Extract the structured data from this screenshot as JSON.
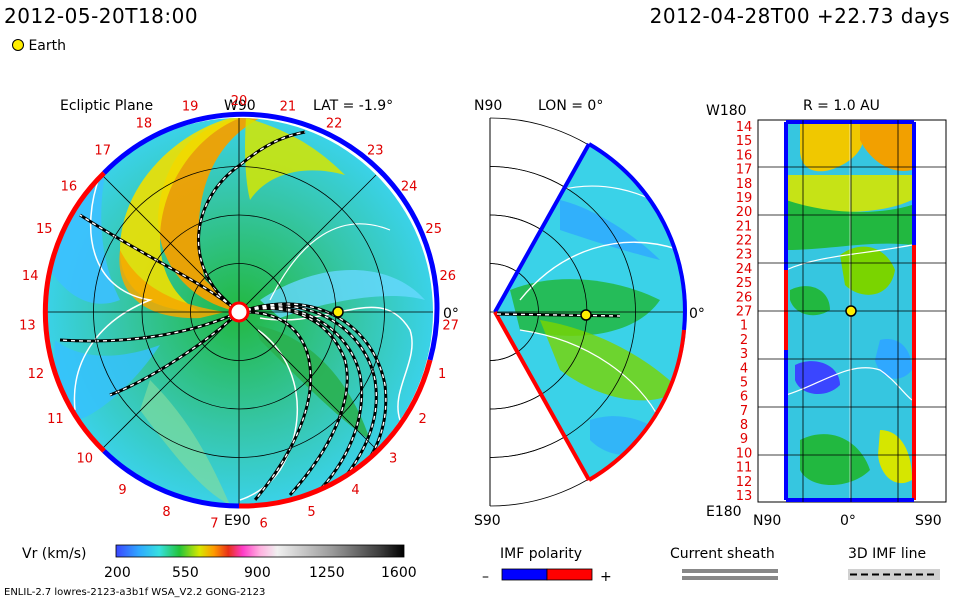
{
  "header": {
    "timestamp": "2012-05-20T18:00",
    "reference": "2012-04-28T00 +22.73 days",
    "legend_earth": "Earth"
  },
  "colors": {
    "earth": "#ffee00",
    "polarity_negative": "#0000ff",
    "polarity_positive": "#ff0000",
    "sheath": "#888888"
  },
  "chart_data": [
    {
      "type": "heatmap",
      "panel": "ecliptic",
      "title": "Ecliptic Plane",
      "subtitle": "LAT = -1.9°",
      "top_label": "W90",
      "bottom_label": "E90",
      "right_label": "0°",
      "carrington_ticks": [
        "20",
        "21",
        "22",
        "23",
        "24",
        "25",
        "26",
        "27",
        "1",
        "2",
        "3",
        "4",
        "5",
        "6",
        "7",
        "8",
        "9",
        "10",
        "11",
        "12",
        "13",
        "14",
        "15",
        "16",
        "17",
        "18",
        "19"
      ],
      "earth_position": {
        "r_au": 1.0,
        "angle_deg": 0
      }
    },
    {
      "type": "heatmap",
      "panel": "meridional",
      "title": "LON = 0°",
      "top_label": "N90",
      "bottom_label": "S90",
      "right_label": "0°"
    },
    {
      "type": "heatmap",
      "panel": "r_1au",
      "title": "R = 1.0 AU",
      "y_top_label": "W180",
      "y_bottom_label": "E180",
      "x_labels": [
        "N90",
        "0°",
        "S90"
      ],
      "y_ticks": [
        "14",
        "15",
        "16",
        "17",
        "18",
        "19",
        "20",
        "21",
        "22",
        "23",
        "24",
        "25",
        "26",
        "27",
        "1",
        "2",
        "3",
        "4",
        "5",
        "6",
        "7",
        "8",
        "9",
        "10",
        "11",
        "12",
        "13"
      ]
    }
  ],
  "colorbar": {
    "label": "Vr (km/s)",
    "ticks": [
      "200",
      "550",
      "900",
      "1250",
      "1600"
    ],
    "range": [
      200,
      1600
    ]
  },
  "legend": {
    "imf_polarity": "IMF polarity",
    "minus": "–",
    "plus": "+",
    "current_sheath": "Current sheath",
    "imf_line": "3D IMF line"
  },
  "footer": {
    "model": "ENLIL-2.7 lowres-2123-a3b1f WSA_V2.2 GONG-2123"
  }
}
